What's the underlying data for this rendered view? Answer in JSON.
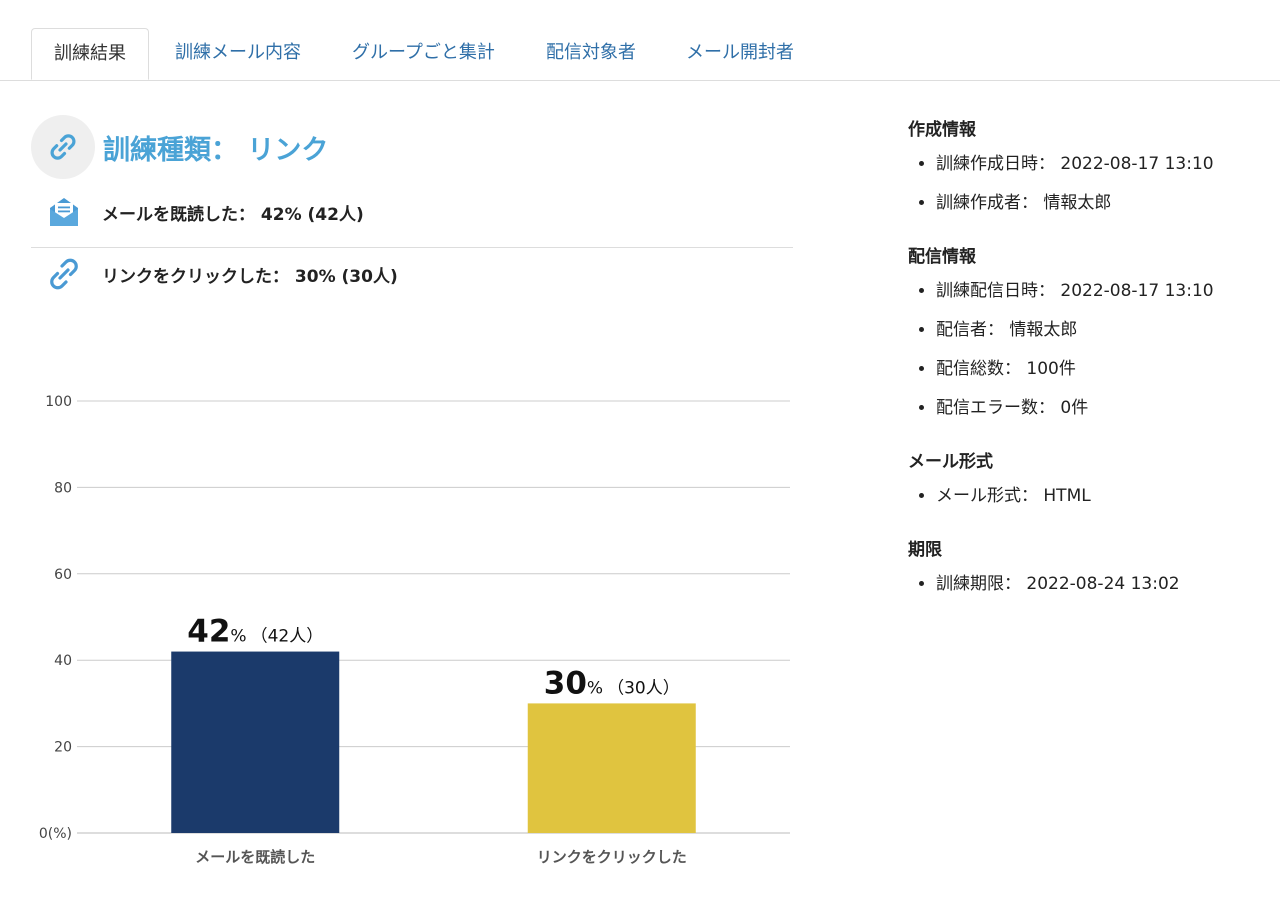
{
  "tabs": [
    {
      "label": "訓練結果",
      "active": true
    },
    {
      "label": "訓練メール内容",
      "active": false
    },
    {
      "label": "グループごと集計",
      "active": false
    },
    {
      "label": "配信対象者",
      "active": false
    },
    {
      "label": "メール開封者",
      "active": false
    }
  ],
  "training": {
    "type_title": "訓練種類： リンク",
    "read_stat": "メールを既読した： 42% (42人)",
    "click_stat": "リンクをクリックした： 30% (30人)"
  },
  "colors": {
    "accent": "#4aa3d6",
    "tab_link": "#2f6fa8",
    "bar_read": "#1b3a6b",
    "bar_click": "#e0c43f"
  },
  "chart_data": {
    "type": "bar",
    "categories": [
      "メールを既読した",
      "リンクをクリックした"
    ],
    "values": [
      42,
      30
    ],
    "value_labels": [
      {
        "big": "42",
        "pct": "%",
        "count": "（42人）"
      },
      {
        "big": "30",
        "pct": "%",
        "count": "（30人）"
      }
    ],
    "y_ticks": [
      "0(%)",
      "20",
      "40",
      "60",
      "80",
      "100"
    ],
    "ylim": [
      0,
      100
    ],
    "grid": true
  },
  "info": {
    "sections": [
      {
        "title": "作成情報",
        "items": [
          "訓練作成日時： 2022-08-17 13:10",
          "訓練作成者： 情報太郎"
        ]
      },
      {
        "title": "配信情報",
        "items": [
          "訓練配信日時： 2022-08-17 13:10",
          "配信者： 情報太郎",
          "配信総数： 100件",
          "配信エラー数： 0件"
        ]
      },
      {
        "title": "メール形式",
        "items": [
          "メール形式： HTML"
        ]
      },
      {
        "title": "期限",
        "items": [
          "訓練期限： 2022-08-24 13:02"
        ]
      }
    ]
  }
}
